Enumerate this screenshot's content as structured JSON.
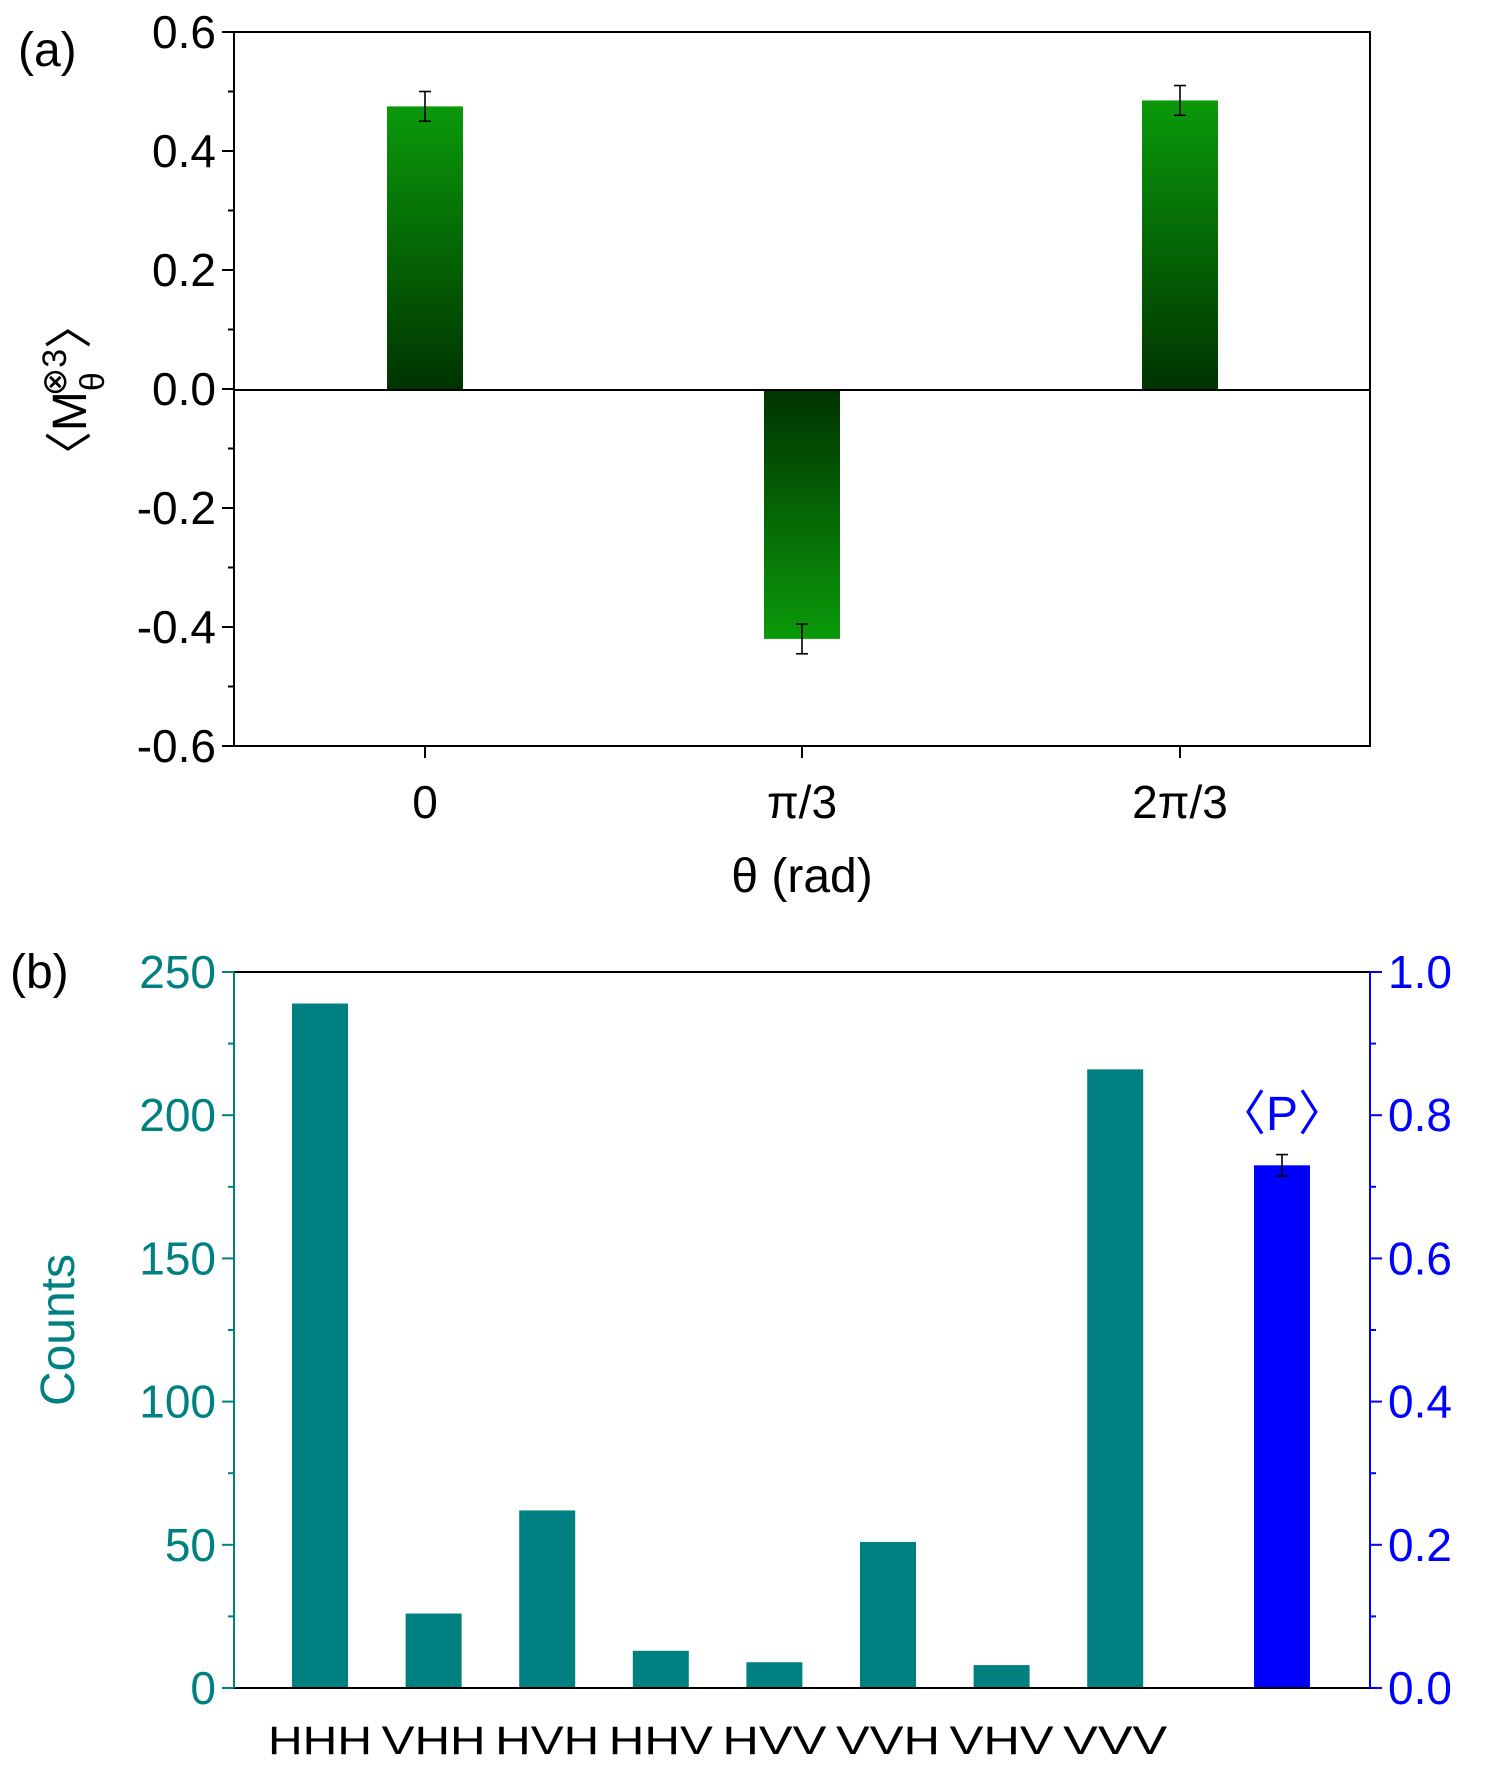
{
  "chart_data": [
    {
      "panel": "(a)",
      "type": "bar",
      "categories": [
        "0",
        "π/3",
        "2π/3"
      ],
      "values": [
        0.475,
        -0.42,
        0.485
      ],
      "errors": [
        0.025,
        0.025,
        0.025
      ],
      "xlabel": "θ (rad)",
      "ylabel": "〈M",
      "ylabel_sub": "θ",
      "ylabel_sup": "⊗3",
      "ylabel_close": "〉",
      "ylim": [
        -0.6,
        0.6
      ],
      "yticks": [
        "-0.6",
        "-0.4",
        "-0.2",
        "0.0",
        "0.2",
        "0.4",
        "0.6"
      ],
      "bar_color_top": "#0a9a0a",
      "bar_color_bottom": "#003300"
    },
    {
      "panel": "(b)",
      "type": "bar",
      "categories": [
        "HHH",
        "VHH",
        "HVH",
        "HHV",
        "HVV",
        "VVH",
        "VHV",
        "VVV"
      ],
      "values": [
        239,
        26,
        62,
        13,
        9,
        51,
        8,
        216
      ],
      "ylabel": "Counts",
      "ylim": [
        0,
        250
      ],
      "yticks": [
        "0",
        "50",
        "100",
        "150",
        "200",
        "250"
      ],
      "bar_color": "#008080",
      "secondary": {
        "label": "〈P〉",
        "value": 0.73,
        "error": 0.015,
        "ylim": [
          0,
          1.0
        ],
        "yticks": [
          "0.0",
          "0.2",
          "0.4",
          "0.6",
          "0.8",
          "1.0"
        ],
        "color": "#0000ff"
      }
    }
  ]
}
